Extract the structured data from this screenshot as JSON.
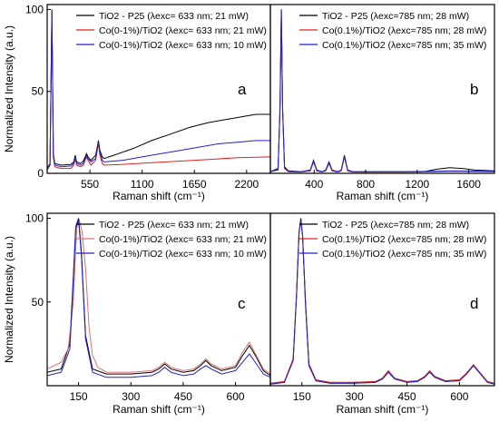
{
  "chart_data": [
    {
      "id": "a",
      "type": "line",
      "panel_label": "a",
      "xlabel": "Raman shift (cm⁻¹)",
      "ylabel": "Normalized Intensity (a.u.)",
      "xlim": [
        100,
        2450
      ],
      "ylim": [
        0,
        103
      ],
      "xticks": [
        550,
        1100,
        1650,
        2200
      ],
      "yticks": [
        0,
        50,
        100
      ],
      "legend_position": "top-right",
      "series": [
        {
          "name": "TiO2 - P25 (λexc= 633 nm; 21 mW)",
          "color": "#000000",
          "x": [
            100,
            130,
            150,
            165,
            180,
            250,
            350,
            380,
            395,
            410,
            450,
            480,
            500,
            515,
            530,
            560,
            610,
            630,
            640,
            655,
            680,
            700,
            800,
            1000,
            1200,
            1400,
            1600,
            1800,
            2000,
            2200,
            2300,
            2450
          ],
          "y": [
            3,
            6,
            100,
            12,
            6,
            5,
            5.5,
            7,
            11,
            7,
            6,
            7.5,
            10,
            12,
            10,
            8,
            11,
            17,
            20,
            14,
            10,
            9,
            11,
            15,
            20,
            24,
            28,
            31,
            33,
            35,
            36,
            36
          ]
        },
        {
          "name": "Co(0-1%)/TiO2 (λexc= 633 nm; 21 mW)",
          "color": "#e02020",
          "x": [
            100,
            130,
            150,
            165,
            180,
            250,
            350,
            380,
            395,
            410,
            450,
            480,
            500,
            515,
            530,
            560,
            610,
            630,
            640,
            655,
            680,
            700,
            900,
            1200,
            1500,
            1800,
            2100,
            2450
          ],
          "y": [
            2,
            5,
            98,
            10,
            4,
            3,
            3,
            5,
            9,
            5,
            4,
            5,
            8,
            10,
            8,
            5,
            8,
            15,
            18,
            11,
            6,
            5,
            5.5,
            6.5,
            7.5,
            8.5,
            9.5,
            10
          ]
        },
        {
          "name": "Co(0-1%)/TiO2 (λexc= 633 nm; 10 mW)",
          "color": "#2020d0",
          "x": [
            100,
            130,
            150,
            165,
            180,
            250,
            350,
            380,
            395,
            410,
            450,
            480,
            500,
            515,
            530,
            560,
            610,
            630,
            640,
            655,
            680,
            700,
            900,
            1100,
            1300,
            1500,
            1700,
            1900,
            2100,
            2300,
            2450
          ],
          "y": [
            3,
            5,
            99,
            11,
            5,
            4,
            4.5,
            6,
            10,
            6,
            5,
            6,
            9,
            11,
            9,
            7,
            9,
            16,
            19,
            13,
            8,
            7,
            8,
            10,
            12,
            14,
            16,
            18,
            19,
            20,
            20
          ]
        }
      ]
    },
    {
      "id": "b",
      "type": "line",
      "panel_label": "b",
      "xlabel": "Raman shift (cm⁻¹)",
      "ylabel": "",
      "xlim": [
        60,
        1800
      ],
      "ylim": [
        0,
        103
      ],
      "xticks": [
        400,
        800,
        1200,
        1600
      ],
      "yticks": [],
      "legend_position": "top-right",
      "series": [
        {
          "name": "TiO2 - P25 (λexc=785 nm; 28 mW)",
          "color": "#000000",
          "x": [
            60,
            120,
            135,
            145,
            155,
            170,
            200,
            300,
            370,
            395,
            420,
            460,
            490,
            515,
            540,
            580,
            610,
            635,
            660,
            700,
            900,
            1100,
            1250,
            1350,
            1450,
            1550,
            1650,
            1800
          ],
          "y": [
            1,
            3,
            40,
            100,
            40,
            4,
            1.5,
            1,
            2,
            8,
            2,
            1,
            2,
            7,
            2,
            1,
            2,
            11,
            2,
            1,
            1,
            1,
            1,
            2.5,
            3.5,
            3,
            2,
            1.5
          ]
        },
        {
          "name": "Co(0.1%)/TiO2 (λexc=785 nm; 28 mW)",
          "color": "#e02020",
          "x": [
            60,
            120,
            135,
            145,
            155,
            170,
            200,
            300,
            370,
            395,
            420,
            460,
            490,
            515,
            540,
            580,
            610,
            635,
            660,
            700,
            900,
            1100,
            1300,
            1500,
            1800
          ],
          "y": [
            1,
            2,
            38,
            99,
            38,
            3,
            1,
            0.8,
            1.5,
            7,
            1.5,
            0.8,
            1.5,
            6,
            1.5,
            0.8,
            1.5,
            10,
            1.5,
            0.8,
            0.8,
            0.8,
            1,
            1.2,
            1
          ]
        },
        {
          "name": "Co(0.1%)/TiO2 (λexc=785 nm; 35 mW)",
          "color": "#2020d0",
          "x": [
            60,
            120,
            135,
            145,
            155,
            170,
            200,
            300,
            370,
            395,
            420,
            460,
            490,
            515,
            540,
            580,
            610,
            635,
            660,
            700,
            900,
            1100,
            1300,
            1500,
            1800
          ],
          "y": [
            1,
            2.5,
            39,
            100,
            39,
            3.5,
            1.2,
            1,
            1.8,
            7.5,
            1.8,
            1,
            1.8,
            6.5,
            1.8,
            1,
            1.8,
            10.5,
            1.8,
            1,
            1,
            1,
            1.3,
            1.5,
            1.2
          ]
        }
      ]
    },
    {
      "id": "c",
      "type": "line",
      "panel_label": "c",
      "xlabel": "Raman shift (cm⁻¹)",
      "ylabel": "Normalized Intensity (a.u.)",
      "xlim": [
        60,
        700
      ],
      "ylim": [
        0,
        103
      ],
      "xticks": [
        150,
        300,
        450,
        600
      ],
      "yticks": [
        50,
        100
      ],
      "legend_position": "top-right",
      "series": [
        {
          "name": "TiO2 - P25 (λexc= 633 nm; 21 mW)",
          "color": "#000000",
          "x": [
            60,
            100,
            125,
            135,
            142,
            150,
            158,
            170,
            190,
            230,
            300,
            360,
            380,
            397,
            415,
            450,
            480,
            500,
            515,
            530,
            560,
            600,
            620,
            640,
            660,
            680,
            700
          ],
          "y": [
            8,
            10,
            25,
            65,
            95,
            100,
            80,
            30,
            10,
            7,
            7,
            8,
            10,
            13,
            10,
            8,
            9,
            12,
            15,
            12,
            9,
            11,
            18,
            24,
            17,
            9,
            6
          ]
        },
        {
          "name": "Co(0-1%)/TiO2 (λexc= 633 nm; 21 mW)",
          "color": "#e07070",
          "x": [
            60,
            100,
            120,
            135,
            145,
            152,
            160,
            170,
            180,
            190,
            197,
            205,
            230,
            300,
            360,
            380,
            397,
            415,
            450,
            480,
            500,
            515,
            530,
            560,
            600,
            620,
            640,
            660,
            680,
            700
          ],
          "y": [
            10,
            14,
            22,
            50,
            95,
            99,
            92,
            70,
            35,
            18,
            15,
            11,
            8,
            8,
            9,
            11,
            14,
            11,
            9,
            10,
            13,
            16,
            13,
            10,
            12,
            20,
            26,
            18,
            10,
            7
          ]
        },
        {
          "name": "Co(0-1%)/TiO2 (λexc= 633 nm; 10 mW)",
          "color": "#2020d0",
          "x": [
            60,
            100,
            125,
            135,
            142,
            150,
            158,
            170,
            190,
            230,
            300,
            360,
            380,
            397,
            415,
            450,
            480,
            500,
            515,
            530,
            560,
            600,
            620,
            640,
            660,
            680,
            700
          ],
          "y": [
            6,
            8,
            22,
            62,
            94,
            99,
            78,
            28,
            8,
            5,
            5,
            6,
            8,
            11,
            8,
            6,
            7,
            10,
            12,
            10,
            7,
            9,
            14,
            19,
            13,
            7,
            5
          ]
        }
      ]
    },
    {
      "id": "d",
      "type": "line",
      "panel_label": "d",
      "xlabel": "Raman shift (cm⁻¹)",
      "ylabel": "",
      "xlim": [
        60,
        700
      ],
      "ylim": [
        0,
        103
      ],
      "xticks": [
        150,
        300,
        450,
        600
      ],
      "yticks": [],
      "legend_position": "top-right",
      "series": [
        {
          "name": "TiO2 - P25 (λexc=785 nm; 28 mW)",
          "color": "#000000",
          "x": [
            60,
            100,
            125,
            135,
            142,
            147,
            152,
            160,
            170,
            190,
            230,
            300,
            360,
            380,
            397,
            415,
            450,
            480,
            500,
            515,
            530,
            560,
            600,
            620,
            640,
            660,
            680,
            700
          ],
          "y": [
            1,
            2,
            15,
            55,
            92,
            100,
            90,
            50,
            12,
            3,
            1.5,
            1.5,
            2,
            4,
            8,
            4,
            2,
            2.5,
            5,
            8,
            5,
            2.5,
            3,
            7,
            12,
            7,
            2,
            1
          ]
        },
        {
          "name": "Co(0.1%)/TiO2 (λexc=785 nm; 28 mW)",
          "color": "#e02020",
          "x": [
            60,
            100,
            125,
            135,
            142,
            147,
            152,
            160,
            170,
            190,
            230,
            300,
            360,
            380,
            397,
            415,
            450,
            480,
            500,
            515,
            530,
            560,
            600,
            620,
            640,
            660,
            680,
            700
          ],
          "y": [
            1.5,
            2.5,
            16,
            56,
            92,
            99,
            90,
            52,
            13,
            3.5,
            2,
            2,
            2.5,
            4.5,
            9,
            4.5,
            2.5,
            3,
            5.5,
            9,
            5.5,
            3,
            3.5,
            7.5,
            12.5,
            7.5,
            2.5,
            1.5
          ]
        },
        {
          "name": "Co(0.1%)/TiO2 (λexc=785 nm; 35 mW)",
          "color": "#2020d0",
          "x": [
            60,
            100,
            125,
            135,
            142,
            147,
            152,
            160,
            170,
            190,
            230,
            300,
            360,
            380,
            397,
            415,
            450,
            480,
            500,
            515,
            530,
            560,
            600,
            620,
            640,
            660,
            680,
            700
          ],
          "y": [
            1,
            2,
            15,
            54,
            91,
            99,
            89,
            51,
            12,
            3,
            1.5,
            1.5,
            2,
            4,
            8,
            4,
            2,
            2.5,
            5,
            8,
            5,
            2.5,
            3,
            7,
            12,
            7,
            2,
            1
          ]
        }
      ]
    }
  ]
}
